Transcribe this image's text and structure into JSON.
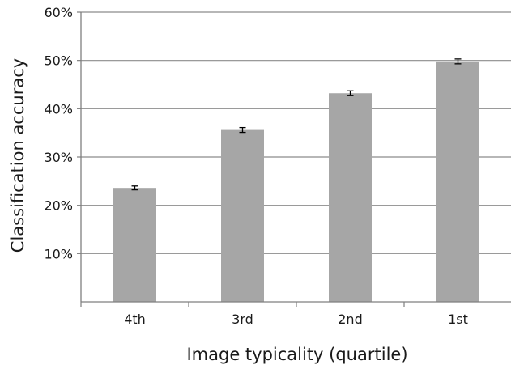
{
  "chart_data": {
    "type": "bar",
    "categories": [
      "4th",
      "3rd",
      "2nd",
      "1st"
    ],
    "values": [
      0.236,
      0.356,
      0.432,
      0.498
    ],
    "error": [
      0.004,
      0.005,
      0.005,
      0.005
    ],
    "xlabel": "Image typicality (quartile)",
    "ylabel": "Classification accuracy",
    "ylim": [
      0,
      0.6
    ],
    "yticks": [
      0.1,
      0.2,
      0.3,
      0.4,
      0.5,
      0.6
    ],
    "ytick_labels": [
      "10%",
      "20%",
      "30%",
      "40%",
      "50%",
      "60%"
    ],
    "grid": "horizontal",
    "legend": "none",
    "colors": {
      "bar": "#a6a6a6",
      "gridline": "#8c8c8c",
      "axis": "#7f7f7f",
      "error_bar": "#000000",
      "text": "#1a1a1a"
    }
  }
}
